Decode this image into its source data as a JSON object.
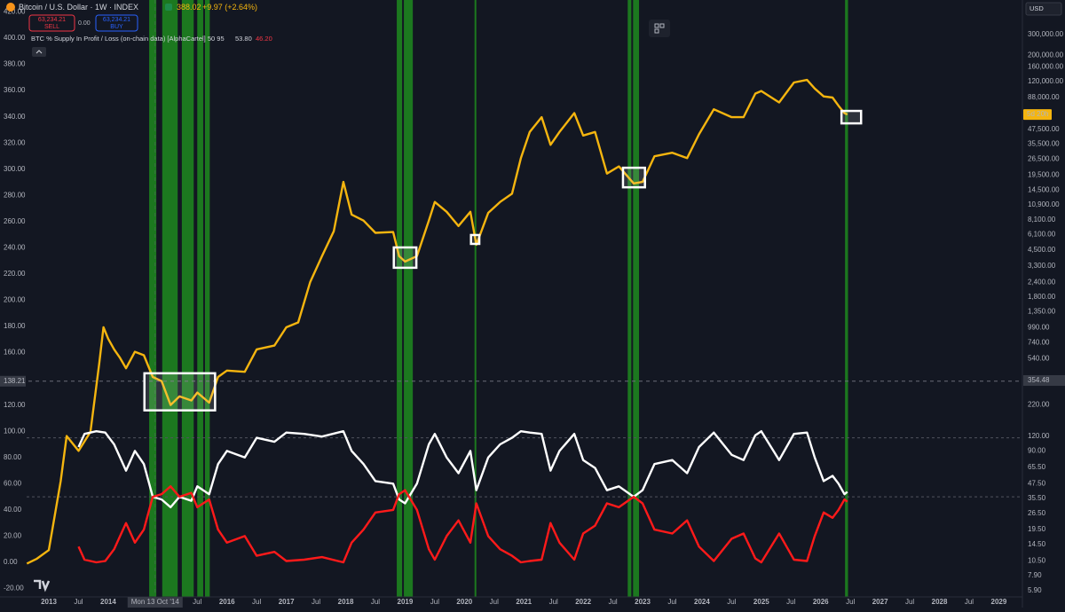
{
  "header": {
    "symbol": "Bitcoin / U.S. Dollar · 1W · INDEX",
    "price": "388.02",
    "change": "+9.97 (+2.64%)",
    "sell_price": "63,234.21",
    "sell": "SELL",
    "spread": "0.00",
    "buy_price": "63,234.21",
    "buy": "BUY",
    "indicator": "BTC % Supply In Profit / Loss (on-chain data) [AlphaCartel] 50 95",
    "indicator_profit": "53.80",
    "indicator_loss": "46.20",
    "currency": "USD"
  },
  "chart_data": {
    "type": "line",
    "xlim": [
      2012.626,
      2029.397
    ],
    "xticks": [
      2013,
      {
        "value": 2013.5,
        "label": "Jul"
      },
      2014,
      {
        "value": 2015.5,
        "label": "Jul"
      },
      2016,
      {
        "value": 2016.5,
        "label": "Jul"
      },
      2017,
      {
        "value": 2017.5,
        "label": "Jul"
      },
      2018,
      {
        "value": 2018.5,
        "label": "Jul"
      },
      2019,
      {
        "value": 2019.5,
        "label": "Jul"
      },
      2020,
      {
        "value": 2020.5,
        "label": "Jul"
      },
      2021,
      {
        "value": 2021.5,
        "label": "Jul"
      },
      2022,
      {
        "value": 2022.5,
        "label": "Jul"
      },
      2023,
      {
        "value": 2023.5,
        "label": "Jul"
      },
      2024,
      {
        "value": 2024.5,
        "label": "Jul"
      },
      2025,
      {
        "value": 2025.5,
        "label": "Jul"
      },
      2026,
      {
        "value": 2026.5,
        "label": "Jul"
      },
      2027,
      {
        "value": 2027.5,
        "label": "Jul"
      },
      2028,
      {
        "value": 2028.5,
        "label": "Jul"
      },
      2029
    ],
    "ylim": [
      -26.4,
      429.1
    ],
    "yticks": [
      {
        "value": -20,
        "label": "-20.00"
      },
      {
        "value": 0,
        "label": "0.00"
      },
      {
        "value": 20,
        "label": "20.00"
      },
      {
        "value": 40,
        "label": "40.00"
      },
      {
        "value": 60,
        "label": "60.00"
      },
      {
        "value": 80,
        "label": "80.00"
      },
      {
        "value": 100,
        "label": "100.00"
      },
      {
        "value": 120,
        "label": "120.00"
      },
      {
        "value": 160,
        "label": "160.00"
      },
      {
        "value": 180,
        "label": "180.00"
      },
      {
        "value": 200,
        "label": "200.00"
      },
      {
        "value": 220,
        "label": "220.00"
      },
      {
        "value": 240,
        "label": "240.00"
      },
      {
        "value": 260,
        "label": "260.00"
      },
      {
        "value": 280,
        "label": "280.00"
      },
      {
        "value": 300,
        "label": "300.00"
      },
      {
        "value": 320,
        "label": "320.00"
      },
      {
        "value": 340,
        "label": "340.00"
      },
      {
        "value": 360,
        "label": "360.00"
      },
      {
        "value": 380,
        "label": "380.00"
      },
      {
        "value": 400,
        "label": "400.00"
      },
      {
        "value": 420,
        "label": "420.00"
      }
    ],
    "y2lim": [
      5.22,
      589000
    ],
    "y2log": true,
    "y2ticks": [
      {
        "value": 300000,
        "label": "300,000.00"
      },
      {
        "value": 200000,
        "label": "200,000.00"
      },
      {
        "value": 160000,
        "label": "160,000.00"
      },
      {
        "value": 120000,
        "label": "120,000.00"
      },
      {
        "value": 88000,
        "label": "88,000.00"
      },
      {
        "value": 47500,
        "label": "47,500.00"
      },
      {
        "value": 35500,
        "label": "35,500.00"
      },
      {
        "value": 26500,
        "label": "26,500.00"
      },
      {
        "value": 19500,
        "label": "19,500.00"
      },
      {
        "value": 14500,
        "label": "14,500.00"
      },
      {
        "value": 10900,
        "label": "10,900.00"
      },
      {
        "value": 8100,
        "label": "8,100.00"
      },
      {
        "value": 6100,
        "label": "6,100.00"
      },
      {
        "value": 4500,
        "label": "4,500.00"
      },
      {
        "value": 3300,
        "label": "3,300.00"
      },
      {
        "value": 2400,
        "label": "2,400.00"
      },
      {
        "value": 1800,
        "label": "1,800.00"
      },
      {
        "value": 1350,
        "label": "1,350.00"
      },
      {
        "value": 990,
        "label": "990.00"
      },
      {
        "value": 740,
        "label": "740.00"
      },
      {
        "value": 540,
        "label": "540.00"
      },
      {
        "value": 220,
        "label": "220.00"
      },
      {
        "value": 120,
        "label": "120.00"
      },
      {
        "value": 90,
        "label": "90.00"
      },
      {
        "value": 65.5,
        "label": "65.50"
      },
      {
        "value": 47.5,
        "label": "47.50"
      },
      {
        "value": 35.5,
        "label": "35.50"
      },
      {
        "value": 26.5,
        "label": "26.50"
      },
      {
        "value": 19.5,
        "label": "19.50"
      },
      {
        "value": 14.5,
        "label": "14.50"
      },
      {
        "value": 10.5,
        "label": "10.50"
      },
      {
        "value": 7.9,
        "label": "7.90"
      },
      {
        "value": 5.9,
        "label": "5.90"
      }
    ],
    "series": [
      {
        "color": "#f5b50f",
        "axis": "y2",
        "x": [
          2012.63,
          2012.8,
          2013.0,
          2013.2,
          2013.3,
          2013.5,
          2013.7,
          2013.85,
          2013.92,
          2014.0,
          2014.1,
          2014.2,
          2014.3,
          2014.45,
          2014.6,
          2014.75,
          2014.9,
          2015.05,
          2015.2,
          2015.4,
          2015.5,
          2015.7,
          2015.85,
          2016.0,
          2016.3,
          2016.5,
          2016.8,
          2017.0,
          2017.2,
          2017.4,
          2017.6,
          2017.8,
          2017.96,
          2018.1,
          2018.3,
          2018.5,
          2018.8,
          2018.9,
          2019.0,
          2019.2,
          2019.4,
          2019.5,
          2019.7,
          2019.9,
          2020.1,
          2020.2,
          2020.4,
          2020.6,
          2020.8,
          2020.95,
          2021.1,
          2021.3,
          2021.45,
          2021.6,
          2021.85,
          2022.0,
          2022.2,
          2022.4,
          2022.6,
          2022.85,
          2023.0,
          2023.2,
          2023.5,
          2023.75,
          2023.95,
          2024.2,
          2024.5,
          2024.7,
          2024.9,
          2025.0,
          2025.3,
          2025.55,
          2025.77,
          2025.9,
          2026.05,
          2026.2,
          2026.3,
          2026.4,
          2026.45
        ],
        "values": [
          10,
          11,
          13,
          50,
          120,
          90,
          130,
          500,
          1000,
          800,
          650,
          550,
          450,
          620,
          580,
          380,
          350,
          220,
          260,
          240,
          280,
          230,
          380,
          430,
          420,
          650,
          700,
          1000,
          1100,
          2400,
          4000,
          6500,
          17000,
          9000,
          8000,
          6300,
          6400,
          4000,
          3600,
          4000,
          8000,
          11500,
          9500,
          7200,
          9500,
          5000,
          9300,
          11500,
          13500,
          27000,
          45000,
          60000,
          35000,
          45000,
          65000,
          42000,
          45000,
          20000,
          23000,
          16500,
          17000,
          28000,
          30000,
          27000,
          43000,
          70000,
          60000,
          60000,
          95000,
          100000,
          80000,
          118000,
          124000,
          105000,
          90000,
          88000,
          75000,
          65000,
          63234.21
        ]
      },
      {
        "color": "#ffffff",
        "x": [
          2013.5,
          2013.6,
          2013.8,
          2013.95,
          2014.1,
          2014.2,
          2014.3,
          2014.45,
          2014.6,
          2014.75,
          2014.9,
          2015.05,
          2015.2,
          2015.4,
          2015.5,
          2015.7,
          2015.85,
          2016.0,
          2016.3,
          2016.5,
          2016.8,
          2017.0,
          2017.3,
          2017.6,
          2017.96,
          2018.1,
          2018.3,
          2018.5,
          2018.8,
          2018.9,
          2019.0,
          2019.2,
          2019.4,
          2019.5,
          2019.7,
          2019.9,
          2020.1,
          2020.2,
          2020.4,
          2020.6,
          2020.8,
          2020.95,
          2021.1,
          2021.3,
          2021.45,
          2021.6,
          2021.85,
          2022.0,
          2022.2,
          2022.4,
          2022.6,
          2022.85,
          2023.0,
          2023.2,
          2023.5,
          2023.75,
          2023.95,
          2024.2,
          2024.5,
          2024.7,
          2024.9,
          2025.0,
          2025.3,
          2025.55,
          2025.77,
          2025.9,
          2026.05,
          2026.2,
          2026.3,
          2026.4,
          2026.45
        ],
        "values": [
          88,
          98,
          100,
          99,
          90,
          80,
          70,
          85,
          75,
          50,
          48,
          42,
          50,
          47,
          58,
          52,
          75,
          85,
          80,
          95,
          92,
          99,
          98,
          96,
          100,
          85,
          75,
          62,
          60,
          48,
          45,
          60,
          90,
          98,
          80,
          68,
          85,
          55,
          80,
          90,
          95,
          100,
          99,
          98,
          70,
          85,
          98,
          78,
          72,
          55,
          58,
          50,
          55,
          75,
          78,
          68,
          88,
          99,
          82,
          78,
          97,
          100,
          78,
          98,
          99,
          80,
          62,
          66,
          60,
          52,
          53.8
        ]
      },
      {
        "color": "#ff1a1a",
        "x": [
          2013.5,
          2013.6,
          2013.8,
          2013.95,
          2014.1,
          2014.2,
          2014.3,
          2014.45,
          2014.6,
          2014.75,
          2014.9,
          2015.05,
          2015.2,
          2015.4,
          2015.5,
          2015.7,
          2015.85,
          2016.0,
          2016.3,
          2016.5,
          2016.8,
          2017.0,
          2017.3,
          2017.6,
          2017.96,
          2018.1,
          2018.3,
          2018.5,
          2018.8,
          2018.9,
          2019.0,
          2019.2,
          2019.4,
          2019.5,
          2019.7,
          2019.9,
          2020.1,
          2020.2,
          2020.4,
          2020.6,
          2020.8,
          2020.95,
          2021.1,
          2021.3,
          2021.45,
          2021.6,
          2021.85,
          2022.0,
          2022.2,
          2022.4,
          2022.6,
          2022.85,
          2023.0,
          2023.2,
          2023.5,
          2023.75,
          2023.95,
          2024.2,
          2024.5,
          2024.7,
          2024.9,
          2025.0,
          2025.3,
          2025.55,
          2025.77,
          2025.9,
          2026.05,
          2026.2,
          2026.3,
          2026.4,
          2026.45
        ],
        "values": [
          12,
          2,
          0,
          1,
          10,
          20,
          30,
          15,
          25,
          50,
          52,
          58,
          50,
          53,
          42,
          48,
          25,
          15,
          20,
          5,
          8,
          1,
          2,
          4,
          0,
          15,
          25,
          38,
          40,
          52,
          55,
          40,
          10,
          2,
          20,
          32,
          15,
          45,
          20,
          10,
          5,
          0,
          1,
          2,
          30,
          15,
          2,
          22,
          28,
          45,
          42,
          50,
          45,
          25,
          22,
          32,
          12,
          1,
          18,
          22,
          3,
          0,
          22,
          2,
          1,
          20,
          38,
          34,
          40,
          48,
          46.2
        ]
      }
    ],
    "levels": [
      50,
      95
    ],
    "bands": [
      [
        2014.69,
        2014.81
      ],
      [
        2014.91,
        2015.17
      ],
      [
        2015.24,
        2015.44
      ],
      [
        2015.5,
        2015.6
      ],
      [
        2015.63,
        2015.71
      ],
      [
        2018.86,
        2018.95
      ],
      [
        2018.98,
        2019.13
      ],
      [
        2020.17,
        2020.2
      ],
      [
        2022.75,
        2022.81
      ],
      [
        2022.84,
        2022.94
      ],
      [
        2026.41,
        2026.46
      ]
    ],
    "band_color": "#1e8a1e",
    "boxes": [
      {
        "x": [
          2014.61,
          2015.8
        ],
        "y2": [
          198,
          408
        ]
      },
      {
        "x": [
          2018.81,
          2019.19
        ],
        "y2": [
          3190,
          4740
        ]
      },
      {
        "x": [
          2020.11,
          2020.25
        ],
        "y2": [
          5080,
          6040
        ]
      },
      {
        "x": [
          2022.67,
          2023.04
        ],
        "y2": [
          15300,
          22400
        ]
      },
      {
        "x": [
          2026.35,
          2026.68
        ],
        "y2": [
          53200,
          67800
        ]
      }
    ],
    "crosshair": {
      "x": 2014.79,
      "x_label": "Mon 13 Oct '14",
      "y": 138.21,
      "y2": 354.48
    },
    "price_badge": "5d 20h"
  }
}
